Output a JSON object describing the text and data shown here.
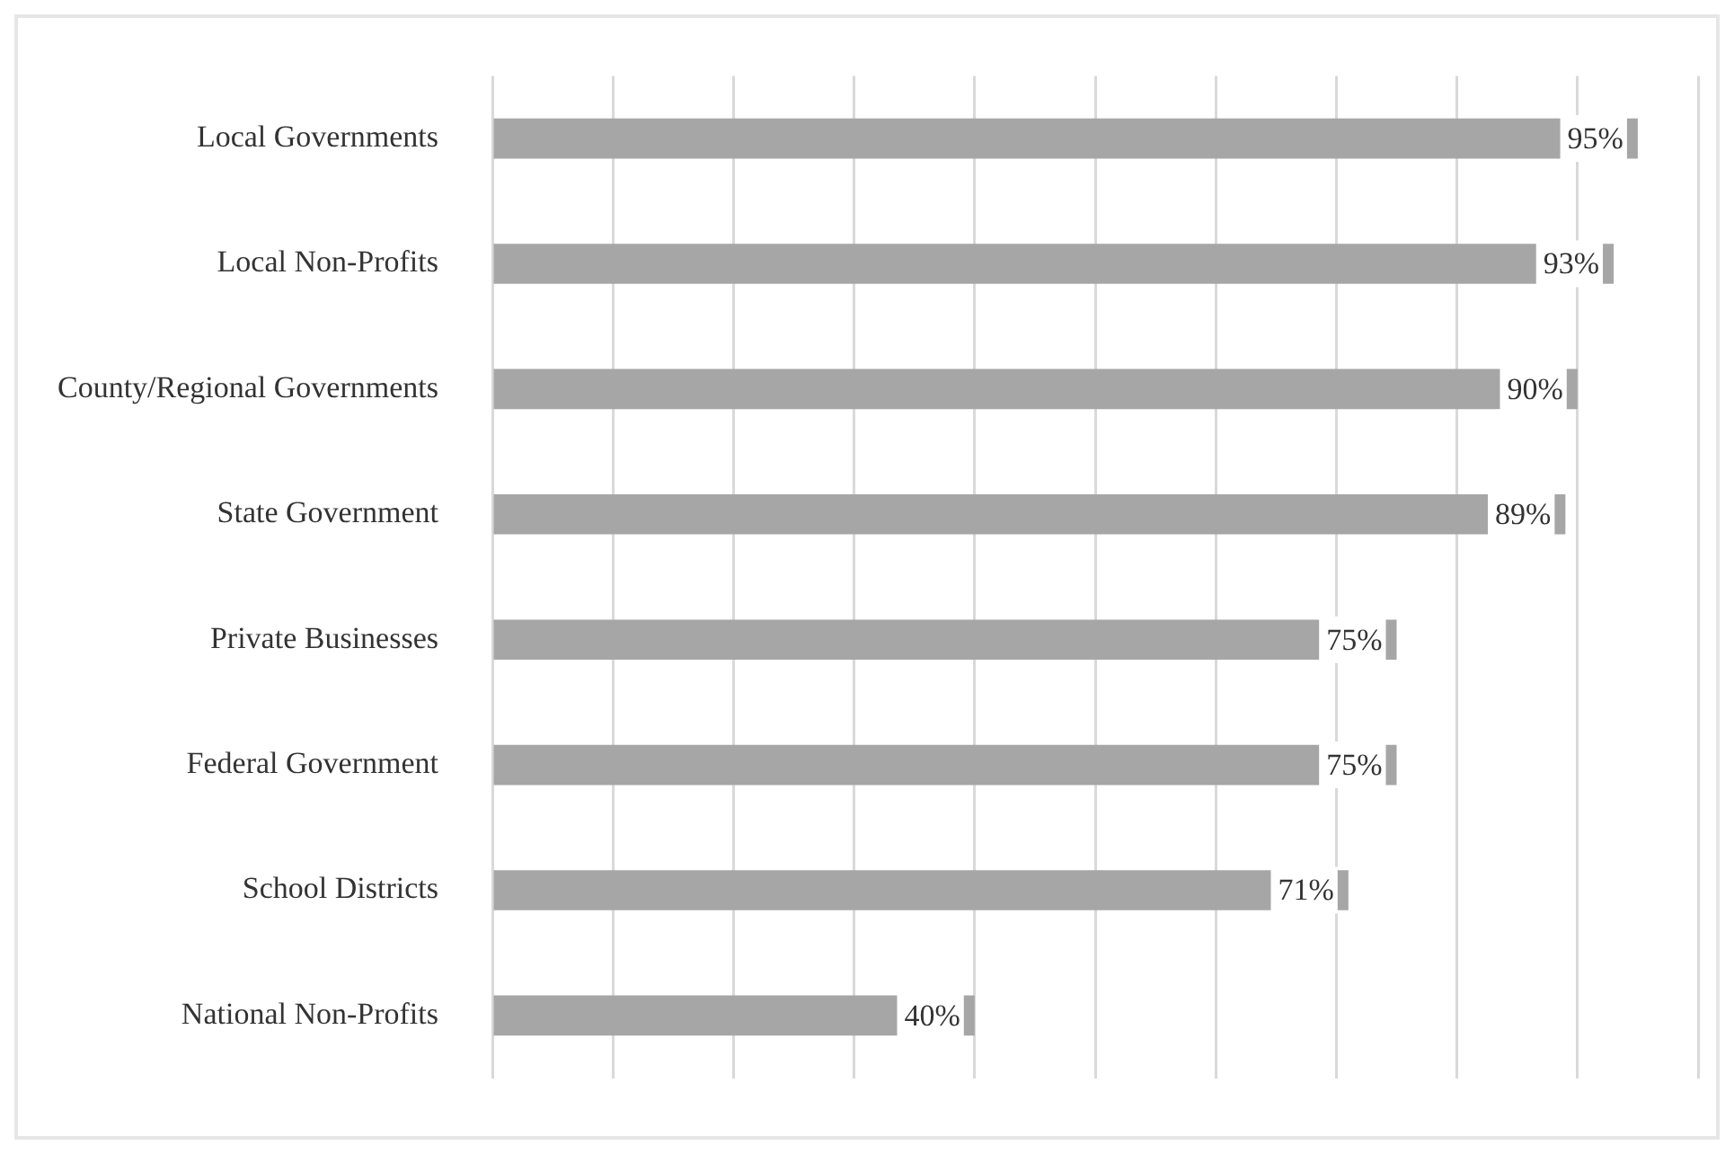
{
  "chart_data": {
    "type": "bar",
    "orientation": "horizontal",
    "categories": [
      "Local Governments",
      "Local Non-Profits",
      "County/Regional Governments",
      "State Government",
      "Private Businesses",
      "Federal Government",
      "School Districts",
      "National Non-Profits"
    ],
    "values": [
      95,
      93,
      90,
      89,
      75,
      75,
      71,
      40
    ],
    "value_labels": [
      "95%",
      "93%",
      "90%",
      "89%",
      "75%",
      "75%",
      "71%",
      "40%"
    ],
    "color": "#a6a6a6",
    "xlim": [
      0,
      100
    ],
    "xticks": [
      {
        "value": 0,
        "label": null
      },
      {
        "value": 10,
        "label": null
      },
      {
        "value": 20,
        "label": null
      },
      {
        "value": 30,
        "label": null
      },
      {
        "value": 40,
        "label": null
      },
      {
        "value": 50,
        "label": null
      },
      {
        "value": 60,
        "label": null
      },
      {
        "value": 70,
        "label": null
      },
      {
        "value": 80,
        "label": null
      },
      {
        "value": 90,
        "label": null
      },
      {
        "value": 100,
        "label": null
      }
    ],
    "grid": "x",
    "tick_labels": "y"
  }
}
